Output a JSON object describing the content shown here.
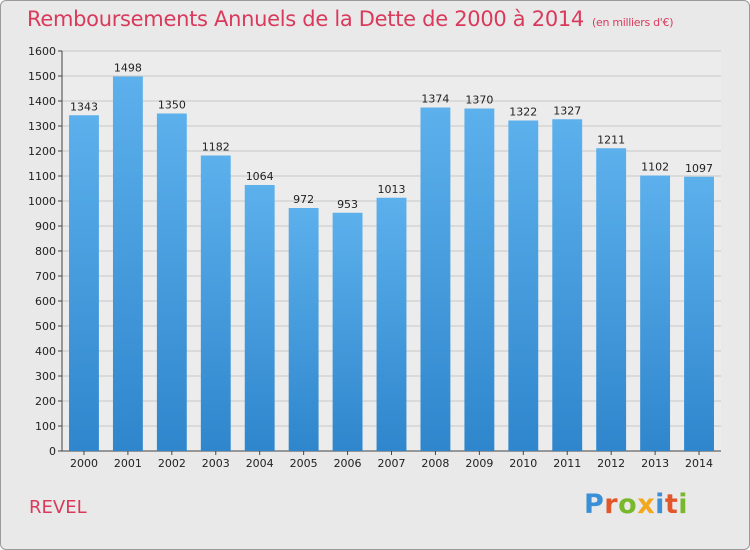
{
  "chart_data": {
    "type": "bar",
    "title": "Remboursements Annuels de la Dette de 2000 à 2014",
    "unit_note": "(en milliers d'€)",
    "categories": [
      "2000",
      "2001",
      "2002",
      "2003",
      "2004",
      "2005",
      "2006",
      "2007",
      "2008",
      "2009",
      "2010",
      "2011",
      "2012",
      "2013",
      "2014"
    ],
    "values": [
      1343,
      1498,
      1350,
      1182,
      1064,
      972,
      953,
      1013,
      1374,
      1370,
      1322,
      1327,
      1211,
      1102,
      1097
    ],
    "ylim": [
      0,
      1600
    ],
    "yticks": [
      0,
      100,
      200,
      300,
      400,
      500,
      600,
      700,
      800,
      900,
      1000,
      1100,
      1200,
      1300,
      1400,
      1500,
      1600
    ],
    "grid": true,
    "bar_color": "#4aa3e3"
  },
  "footer": {
    "commune": "REVEL",
    "logo_letters": [
      {
        "ch": "P",
        "color": "#3a8fd6"
      },
      {
        "ch": "r",
        "color": "#e2562c"
      },
      {
        "ch": "o",
        "color": "#78b82a"
      },
      {
        "ch": "x",
        "color": "#f2a81d"
      },
      {
        "ch": "i",
        "color": "#3a8fd6"
      },
      {
        "ch": "t",
        "color": "#e2562c"
      },
      {
        "ch": "i",
        "color": "#78b82a"
      }
    ]
  }
}
